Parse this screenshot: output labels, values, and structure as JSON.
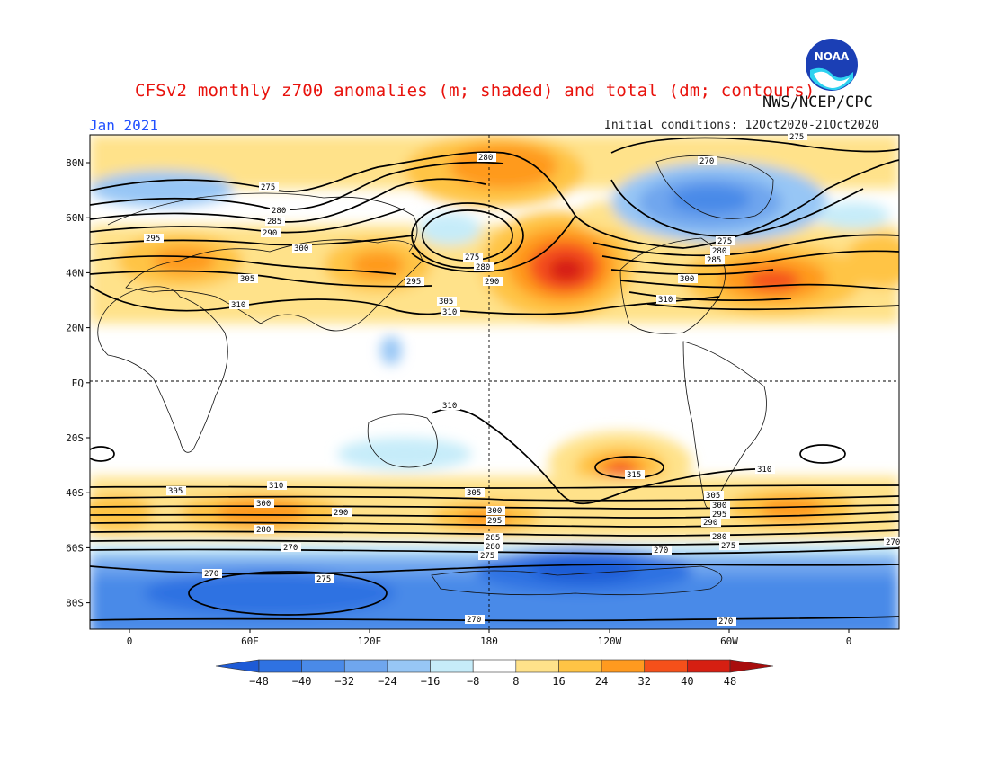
{
  "header": {
    "title": "CFSv2 monthly z700 anomalies (m; shaded) and total (dm; contours)",
    "credit": "NWS/NCEP/CPC",
    "period": "Jan 2021",
    "initial_conditions": "Initial conditions: 12Oct2020-21Oct2020",
    "logo_text": "NOAA"
  },
  "map": {
    "lat_labels": [
      "80N",
      "60N",
      "40N",
      "20N",
      "EQ",
      "20S",
      "40S",
      "60S",
      "80S"
    ],
    "lon_labels": [
      "0",
      "60E",
      "120E",
      "180",
      "120W",
      "60W",
      "0"
    ],
    "contour_labels": [
      "275",
      "280",
      "285",
      "290",
      "295",
      "300",
      "305",
      "310",
      "315",
      "270",
      "275",
      "280",
      "285",
      "290",
      "295",
      "300",
      "305",
      "310",
      "270",
      "275",
      "280"
    ],
    "grid_dashed_lines": [
      "EQ",
      "180"
    ]
  },
  "colorbar": {
    "ticks": [
      "−48",
      "−40",
      "−32",
      "−24",
      "−16",
      "−8",
      "8",
      "16",
      "24",
      "32",
      "40",
      "48"
    ],
    "colors": [
      "#1e5bd6",
      "#2f72e2",
      "#4a8ae8",
      "#6fa6ee",
      "#97c6f5",
      "#c6ecf9",
      "#ffffff",
      "#ffe28a",
      "#ffc445",
      "#ff9a1f",
      "#f5501a",
      "#d61f12",
      "#a80d0d"
    ],
    "units": "m"
  }
}
